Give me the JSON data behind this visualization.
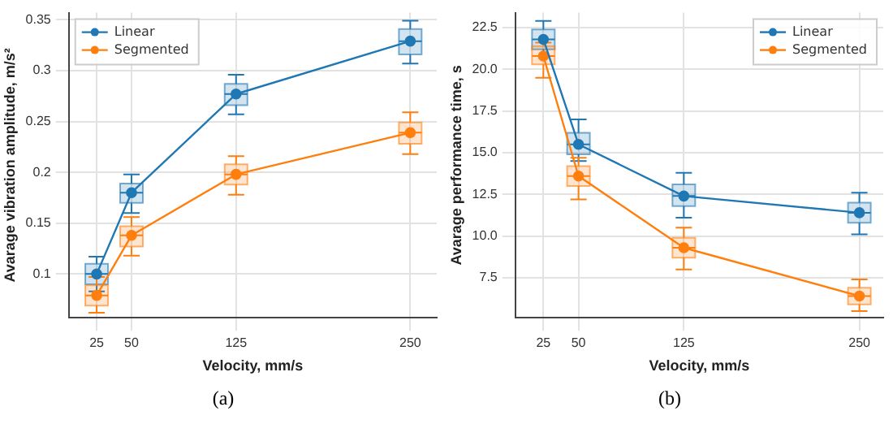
{
  "chart_data": [
    {
      "type": "line",
      "xlabel": "Velocity, mm/s",
      "ylabel": "Avarage vibration amplitude, m/s²",
      "x": [
        25,
        50,
        125,
        250
      ],
      "xlim": [
        5,
        269
      ],
      "xticks": [
        25,
        50,
        125,
        250
      ],
      "ylim": [
        0.057,
        0.357
      ],
      "yticks": [
        0.1,
        0.15,
        0.2,
        0.25,
        0.3,
        0.35
      ],
      "grid": true,
      "legend": "top left",
      "marker": "circle",
      "line_style": "solid",
      "annotations": [
        "(a)"
      ],
      "series": [
        {
          "type": "box",
          "color": "#1f77b4",
          "boxes": [
            {
              "low": 0.083,
              "q1": 0.09,
              "median": 0.1,
              "q3": 0.11,
              "high": 0.117
            },
            {
              "low": 0.16,
              "q1": 0.17,
              "median": 0.18,
              "q3": 0.189,
              "high": 0.198
            },
            {
              "low": 0.257,
              "q1": 0.266,
              "median": 0.277,
              "q3": 0.287,
              "high": 0.296
            },
            {
              "low": 0.307,
              "q1": 0.316,
              "median": 0.329,
              "q3": 0.341,
              "high": 0.349
            }
          ]
        },
        {
          "type": "box",
          "color": "#ff7f0e",
          "boxes": [
            {
              "low": 0.062,
              "q1": 0.069,
              "median": 0.079,
              "q3": 0.089,
              "high": 0.097
            },
            {
              "low": 0.118,
              "q1": 0.127,
              "median": 0.138,
              "q3": 0.147,
              "high": 0.156
            },
            {
              "low": 0.178,
              "q1": 0.188,
              "median": 0.198,
              "q3": 0.208,
              "high": 0.216
            },
            {
              "low": 0.218,
              "q1": 0.228,
              "median": 0.239,
              "q3": 0.249,
              "high": 0.259
            }
          ]
        },
        {
          "name": "Linear",
          "color": "#1f77b4",
          "values": [
            0.1,
            0.18,
            0.277,
            0.329
          ]
        },
        {
          "name": "Segmented",
          "color": "#ff7f0e",
          "values": [
            0.079,
            0.138,
            0.198,
            0.239
          ]
        }
      ]
    },
    {
      "type": "line",
      "xlabel": "Velocity, mm/s",
      "ylabel": "Avarage performance time, s",
      "x": [
        25,
        50,
        125,
        250
      ],
      "xlim": [
        5,
        267
      ],
      "xticks": [
        25,
        50,
        125,
        250
      ],
      "ylim": [
        5.1,
        23.4
      ],
      "yticks": [
        {
          "value": 7.5,
          "label": "7.5"
        },
        {
          "value": 10,
          "label": "10.0"
        },
        {
          "value": 12.5,
          "label": "12.5"
        },
        {
          "value": 15,
          "label": "15.0"
        },
        {
          "value": 17.5,
          "label": "17.5"
        },
        {
          "value": 20,
          "label": "20.0"
        },
        {
          "value": 22.5,
          "label": "22.5"
        }
      ],
      "grid": true,
      "legend": "top right",
      "marker": "circle",
      "line_style": "solid",
      "annotations": [
        "(b)"
      ],
      "series": [
        {
          "type": "box",
          "color": "#1f77b4",
          "boxes": [
            {
              "low": 20.8,
              "q1": 21.2,
              "median": 21.8,
              "q3": 22.4,
              "high": 22.9
            },
            {
              "low": 14.5,
              "q1": 14.9,
              "median": 15.5,
              "q3": 16.2,
              "high": 17
            },
            {
              "low": 11.1,
              "q1": 11.8,
              "median": 12.4,
              "q3": 13.1,
              "high": 13.8
            },
            {
              "low": 10.1,
              "q1": 10.8,
              "median": 11.4,
              "q3": 12,
              "high": 12.6
            }
          ]
        },
        {
          "type": "box",
          "color": "#ff7f0e",
          "boxes": [
            {
              "low": 19.5,
              "q1": 20.3,
              "median": 20.8,
              "q3": 21.4,
              "high": 21.6
            },
            {
              "low": 12.2,
              "q1": 13,
              "median": 13.6,
              "q3": 14.2,
              "high": 14.7
            },
            {
              "low": 8,
              "q1": 8.7,
              "median": 9.3,
              "q3": 9.9,
              "high": 10.5
            },
            {
              "low": 5.5,
              "q1": 5.9,
              "median": 6.4,
              "q3": 6.9,
              "high": 7.4
            }
          ]
        },
        {
          "name": "Linear",
          "color": "#1f77b4",
          "values": [
            21.8,
            15.5,
            12.4,
            11.4
          ]
        },
        {
          "name": "Segmented",
          "color": "#ff7f0e",
          "values": [
            20.8,
            13.6,
            9.3,
            6.4
          ]
        }
      ]
    }
  ]
}
